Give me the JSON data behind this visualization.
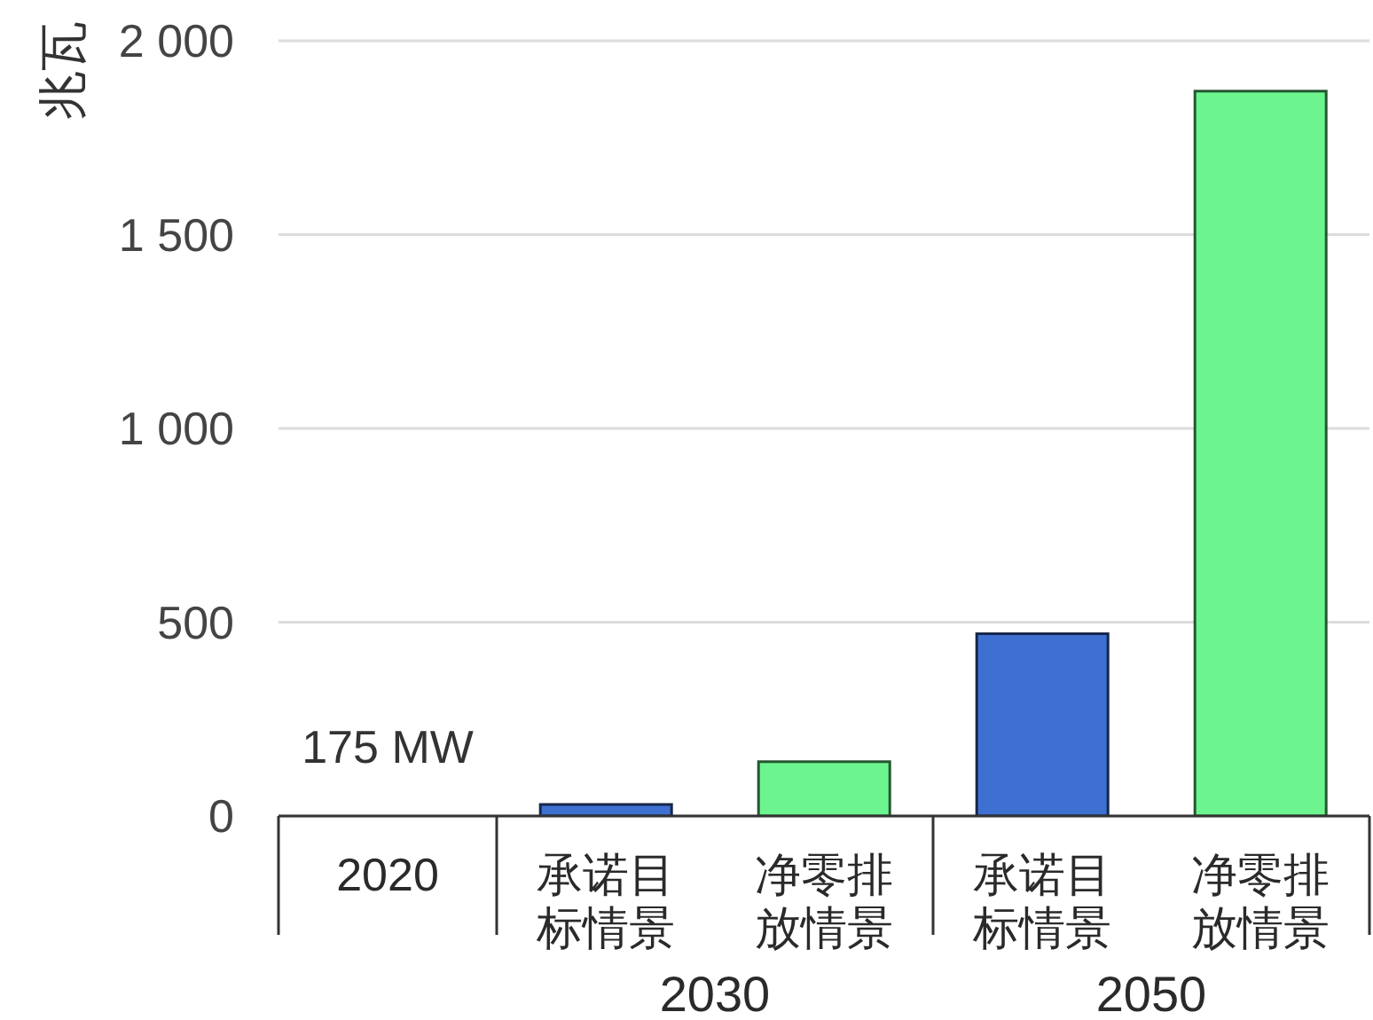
{
  "chart_data": {
    "type": "bar",
    "ylabel": "兆瓦",
    "categories": [
      "2020",
      "承诺目标情景",
      "净零排放情景",
      "承诺目标情景",
      "净零排放情景"
    ],
    "values": [
      0,
      30,
      140,
      470,
      1870
    ],
    "colors": [
      "#7f7f7f",
      "#3e70d2",
      "#6cf58f",
      "#3e70d2",
      "#6cf58f"
    ],
    "annotations": [
      {
        "text": "175 MW",
        "x": "2020",
        "y": 0
      },
      "2030",
      "2050"
    ],
    "ylim": [
      0,
      2000
    ],
    "yticks": [
      0,
      500,
      {
        "value": 1000,
        "label": "1 000"
      },
      {
        "value": 1500,
        "label": "1 500"
      },
      {
        "value": 2000,
        "label": "2 000"
      }
    ],
    "grid": "y"
  }
}
